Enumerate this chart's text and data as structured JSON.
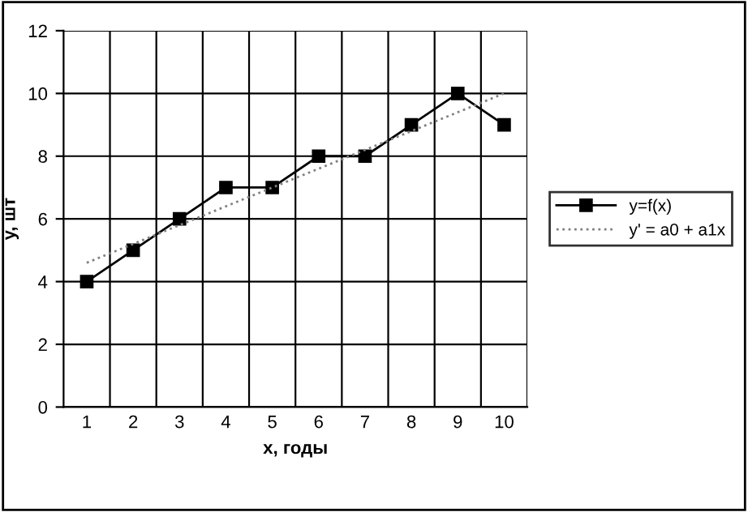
{
  "chart_data": {
    "type": "line",
    "xlabel": "x, годы",
    "ylabel": "y, шт",
    "categories": [
      "1",
      "2",
      "3",
      "4",
      "5",
      "6",
      "7",
      "8",
      "9",
      "10"
    ],
    "series": [
      {
        "name": "y=f(x)",
        "color": "#000000",
        "marker": "square",
        "line_style": "solid",
        "values": [
          4,
          5,
          6,
          7,
          7,
          8,
          8,
          9,
          10,
          9
        ]
      },
      {
        "name": "y' = a0 + a1x",
        "color": "#808080",
        "marker": "none",
        "line_style": "dotted",
        "values": [
          4.6,
          5.2,
          5.8,
          6.4,
          7.0,
          7.6,
          8.2,
          8.8,
          9.4,
          10.0
        ]
      }
    ],
    "ylim": [
      0,
      12
    ],
    "yticks": [
      0,
      2,
      4,
      6,
      8,
      10,
      12
    ],
    "grid": true,
    "legend": "right"
  }
}
